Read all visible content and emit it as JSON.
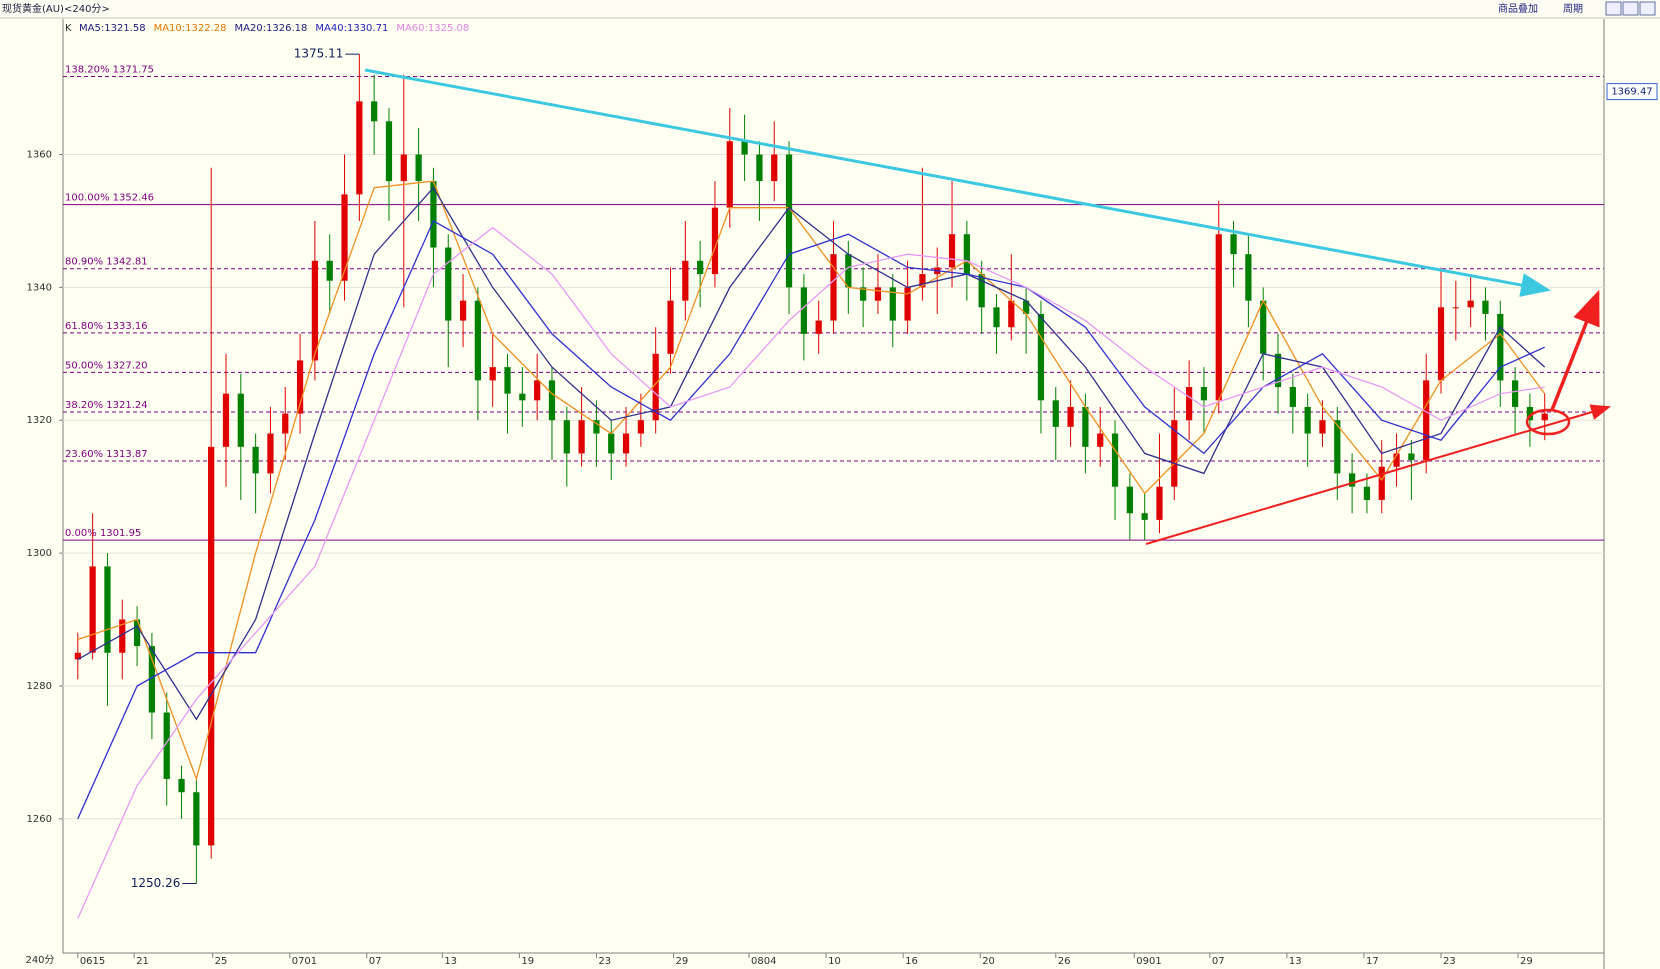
{
  "header": {
    "title": "现货黄金(AU)<240分>",
    "buttons": [
      "商品叠加",
      "周期"
    ]
  },
  "chart_data": {
    "type": "candlestick",
    "period_label": "240分",
    "legend_prefix": "K",
    "legend": [
      {
        "label": "MA5:1321.58",
        "color": "#202080"
      },
      {
        "label": "MA10:1322.28",
        "color": "#e07800"
      },
      {
        "label": "MA20:1326.18",
        "color": "#202080"
      },
      {
        "label": "MA40:1330.71",
        "color": "#2020c0"
      },
      {
        "label": "MA60:1325.08",
        "color": "#e080e0"
      }
    ],
    "up_color": "#e00000",
    "down_color": "#008000",
    "ylim": [
      1239.8,
      1380.4
    ],
    "yticks": [
      1260,
      1280,
      1300,
      1320,
      1340,
      1360
    ],
    "grid": true,
    "xlim": [
      -1,
      103
    ],
    "xticks": [
      {
        "value": 0,
        "label": "0615"
      },
      {
        "value": 3.8,
        "label": "21"
      },
      {
        "value": 9.1,
        "label": "25"
      },
      {
        "value": 14.3,
        "label": "0701"
      },
      {
        "value": 19.5,
        "label": "07"
      },
      {
        "value": 24.6,
        "label": "13"
      },
      {
        "value": 29.8,
        "label": "19"
      },
      {
        "value": 35,
        "label": "23"
      },
      {
        "value": 40.2,
        "label": "29"
      },
      {
        "value": 45.3,
        "label": "0804"
      },
      {
        "value": 50.5,
        "label": "10"
      },
      {
        "value": 55.7,
        "label": "16"
      },
      {
        "value": 60.9,
        "label": "20"
      },
      {
        "value": 66,
        "label": "26"
      },
      {
        "value": 71.3,
        "label": "0901"
      },
      {
        "value": 76.4,
        "label": "07"
      },
      {
        "value": 81.6,
        "label": "13"
      },
      {
        "value": 86.8,
        "label": "17"
      },
      {
        "value": 92,
        "label": "23"
      },
      {
        "value": 97.2,
        "label": "29"
      }
    ],
    "candles": [
      [
        1284,
        1288,
        1281,
        1285
      ],
      [
        1285,
        1306,
        1284,
        1298
      ],
      [
        1298,
        1300,
        1277,
        1285
      ],
      [
        1285,
        1293,
        1281,
        1290
      ],
      [
        1290,
        1292,
        1283,
        1286
      ],
      [
        1286,
        1288,
        1272,
        1276
      ],
      [
        1276,
        1279,
        1262,
        1266
      ],
      [
        1266,
        1268,
        1260,
        1264
      ],
      [
        1264,
        1266,
        1250.26,
        1256
      ],
      [
        1256,
        1358,
        1254,
        1316
      ],
      [
        1316,
        1330,
        1310,
        1324
      ],
      [
        1324,
        1327,
        1308,
        1316
      ],
      [
        1316,
        1318,
        1306,
        1312
      ],
      [
        1312,
        1322,
        1309,
        1318
      ],
      [
        1318,
        1325,
        1314,
        1321
      ],
      [
        1321,
        1333,
        1318,
        1329
      ],
      [
        1329,
        1350,
        1326,
        1344
      ],
      [
        1344,
        1348,
        1336,
        1341
      ],
      [
        1341,
        1360,
        1338,
        1354
      ],
      [
        1354,
        1375.11,
        1350,
        1368
      ],
      [
        1368,
        1372,
        1360,
        1365
      ],
      [
        1365,
        1367,
        1350,
        1356
      ],
      [
        1356,
        1372,
        1337,
        1360
      ],
      [
        1360,
        1364,
        1350,
        1356
      ],
      [
        1356,
        1358,
        1340,
        1346
      ],
      [
        1346,
        1348,
        1328,
        1335
      ],
      [
        1335,
        1342,
        1331,
        1338
      ],
      [
        1338,
        1340,
        1320,
        1326
      ],
      [
        1326,
        1333,
        1322,
        1328
      ],
      [
        1328,
        1330,
        1318,
        1324
      ],
      [
        1324,
        1328,
        1319,
        1323
      ],
      [
        1323,
        1330,
        1320,
        1326
      ],
      [
        1326,
        1328,
        1314,
        1320
      ],
      [
        1320,
        1322,
        1310,
        1315
      ],
      [
        1315,
        1325,
        1313,
        1320
      ],
      [
        1320,
        1323,
        1313,
        1318
      ],
      [
        1318,
        1320,
        1311,
        1315
      ],
      [
        1315,
        1322,
        1313,
        1318
      ],
      [
        1318,
        1324,
        1316,
        1320
      ],
      [
        1320,
        1334,
        1318,
        1330
      ],
      [
        1330,
        1343,
        1327,
        1338
      ],
      [
        1338,
        1350,
        1335,
        1344
      ],
      [
        1344,
        1347,
        1337,
        1342
      ],
      [
        1342,
        1356,
        1340,
        1352
      ],
      [
        1352,
        1367,
        1349,
        1362
      ],
      [
        1362,
        1366,
        1356,
        1360
      ],
      [
        1360,
        1362,
        1350,
        1356
      ],
      [
        1356,
        1365,
        1353,
        1360
      ],
      [
        1360,
        1362,
        1336,
        1340
      ],
      [
        1340,
        1342,
        1329,
        1333
      ],
      [
        1333,
        1338,
        1330,
        1335
      ],
      [
        1335,
        1350,
        1333,
        1345
      ],
      [
        1345,
        1347,
        1336,
        1340
      ],
      [
        1340,
        1343,
        1334,
        1338
      ],
      [
        1338,
        1345,
        1336,
        1340
      ],
      [
        1340,
        1342,
        1331,
        1335
      ],
      [
        1335,
        1344,
        1333,
        1340
      ],
      [
        1340,
        1358,
        1338,
        1342
      ],
      [
        1342,
        1346,
        1336,
        1343
      ],
      [
        1343,
        1356,
        1340,
        1348
      ],
      [
        1348,
        1350,
        1338,
        1342
      ],
      [
        1342,
        1344,
        1333,
        1337
      ],
      [
        1337,
        1339,
        1330,
        1334
      ],
      [
        1334,
        1345,
        1332,
        1338
      ],
      [
        1338,
        1340,
        1330,
        1336
      ],
      [
        1336,
        1338,
        1318,
        1323
      ],
      [
        1323,
        1325,
        1314,
        1319
      ],
      [
        1319,
        1326,
        1316,
        1322
      ],
      [
        1322,
        1324,
        1312,
        1316
      ],
      [
        1316,
        1322,
        1313,
        1318
      ],
      [
        1318,
        1320,
        1305,
        1310
      ],
      [
        1310,
        1312,
        1302,
        1306
      ],
      [
        1306,
        1309,
        1302,
        1305
      ],
      [
        1305,
        1318,
        1303,
        1310
      ],
      [
        1310,
        1325,
        1308,
        1320
      ],
      [
        1320,
        1329,
        1317,
        1325
      ],
      [
        1325,
        1328,
        1318,
        1323
      ],
      [
        1323,
        1353,
        1321,
        1348
      ],
      [
        1348,
        1350,
        1340,
        1345
      ],
      [
        1345,
        1348,
        1334,
        1338
      ],
      [
        1338,
        1340,
        1326,
        1330
      ],
      [
        1330,
        1333,
        1321,
        1325
      ],
      [
        1325,
        1327,
        1318,
        1322
      ],
      [
        1322,
        1324,
        1313,
        1318
      ],
      [
        1318,
        1323,
        1316,
        1320
      ],
      [
        1320,
        1322,
        1308,
        1312
      ],
      [
        1312,
        1315,
        1306,
        1310
      ],
      [
        1310,
        1312,
        1306,
        1308
      ],
      [
        1308,
        1317,
        1306,
        1313
      ],
      [
        1313,
        1318,
        1310,
        1315
      ],
      [
        1315,
        1317,
        1308,
        1314
      ],
      [
        1314,
        1330,
        1312,
        1326
      ],
      [
        1326,
        1343,
        1324,
        1337
      ],
      [
        1337,
        1341,
        1332,
        1337
      ],
      [
        1337,
        1342,
        1334,
        1338
      ],
      [
        1338,
        1340,
        1332,
        1336
      ],
      [
        1336,
        1338,
        1322,
        1326
      ],
      [
        1326,
        1328,
        1318,
        1322
      ],
      [
        1322,
        1324,
        1316,
        1320
      ],
      [
        1320,
        1324,
        1317,
        1321
      ]
    ],
    "ma_lines": [
      {
        "color": "#f09020",
        "x": [
          0,
          4,
          8,
          12,
          16,
          20,
          24,
          28,
          32,
          36,
          40,
          44,
          48,
          52,
          56,
          60,
          64,
          68,
          72,
          76,
          80,
          84,
          88,
          92,
          96,
          99
        ],
        "values": [
          1287,
          1290,
          1266,
          1300,
          1330,
          1355,
          1356,
          1333,
          1324,
          1318,
          1328,
          1352,
          1352,
          1340,
          1339,
          1344,
          1336,
          1322,
          1309,
          1318,
          1338,
          1322,
          1311,
          1326,
          1333,
          1324
        ]
      },
      {
        "color": "#303090",
        "x": [
          0,
          4,
          8,
          12,
          16,
          20,
          24,
          28,
          32,
          36,
          40,
          44,
          48,
          52,
          56,
          60,
          64,
          68,
          72,
          76,
          80,
          84,
          88,
          92,
          96,
          99
        ],
        "values": [
          1284,
          1289,
          1275,
          1290,
          1318,
          1345,
          1355,
          1340,
          1328,
          1320,
          1322,
          1340,
          1352,
          1345,
          1340,
          1342,
          1338,
          1328,
          1315,
          1312,
          1330,
          1328,
          1315,
          1318,
          1334,
          1328
        ]
      },
      {
        "color": "#3030d0",
        "x": [
          0,
          4,
          8,
          12,
          16,
          20,
          24,
          28,
          32,
          36,
          40,
          44,
          48,
          52,
          56,
          60,
          64,
          68,
          72,
          76,
          80,
          84,
          88,
          92,
          96,
          99
        ],
        "values": [
          1260,
          1280,
          1285,
          1285,
          1305,
          1330,
          1350,
          1345,
          1333,
          1325,
          1320,
          1330,
          1345,
          1348,
          1343,
          1342,
          1340,
          1334,
          1322,
          1315,
          1325,
          1330,
          1320,
          1317,
          1328,
          1331
        ]
      },
      {
        "color": "#e898f4",
        "x": [
          0,
          4,
          8,
          12,
          16,
          20,
          24,
          28,
          32,
          36,
          40,
          44,
          48,
          52,
          56,
          60,
          64,
          68,
          72,
          76,
          80,
          84,
          88,
          92,
          96,
          99
        ],
        "values": [
          1245,
          1265,
          1278,
          1288,
          1298,
          1320,
          1342,
          1349,
          1342,
          1330,
          1322,
          1325,
          1335,
          1343,
          1345,
          1344,
          1340,
          1335,
          1328,
          1322,
          1325,
          1328,
          1325,
          1320,
          1324,
          1325
        ]
      }
    ],
    "fib_color": "#800080",
    "fib_levels": [
      {
        "value": 1371.75,
        "label": "138.20% 1371.75",
        "solid": false
      },
      {
        "value": 1352.46,
        "label": "100.00% 1352.46",
        "solid": true
      },
      {
        "value": 1342.81,
        "label": "80.90% 1342.81",
        "solid": false
      },
      {
        "value": 1333.16,
        "label": "61.80% 1333.16",
        "solid": false
      },
      {
        "value": 1327.2,
        "label": "50.00% 1327.20",
        "solid": false
      },
      {
        "value": 1321.24,
        "label": "38.20% 1321.24",
        "solid": false
      },
      {
        "value": 1313.87,
        "label": "23.60% 1313.87",
        "solid": false
      },
      {
        "value": 1301.95,
        "label": "0.00% 1301.95",
        "solid": true
      }
    ],
    "annotations": [
      {
        "index": 19,
        "value": 1375.11,
        "label": "1375.11"
      },
      {
        "index": 8,
        "value": 1250.26,
        "label": "1250.26"
      }
    ],
    "current_marker": {
      "value": 1369.47,
      "label": "1369.47"
    }
  }
}
